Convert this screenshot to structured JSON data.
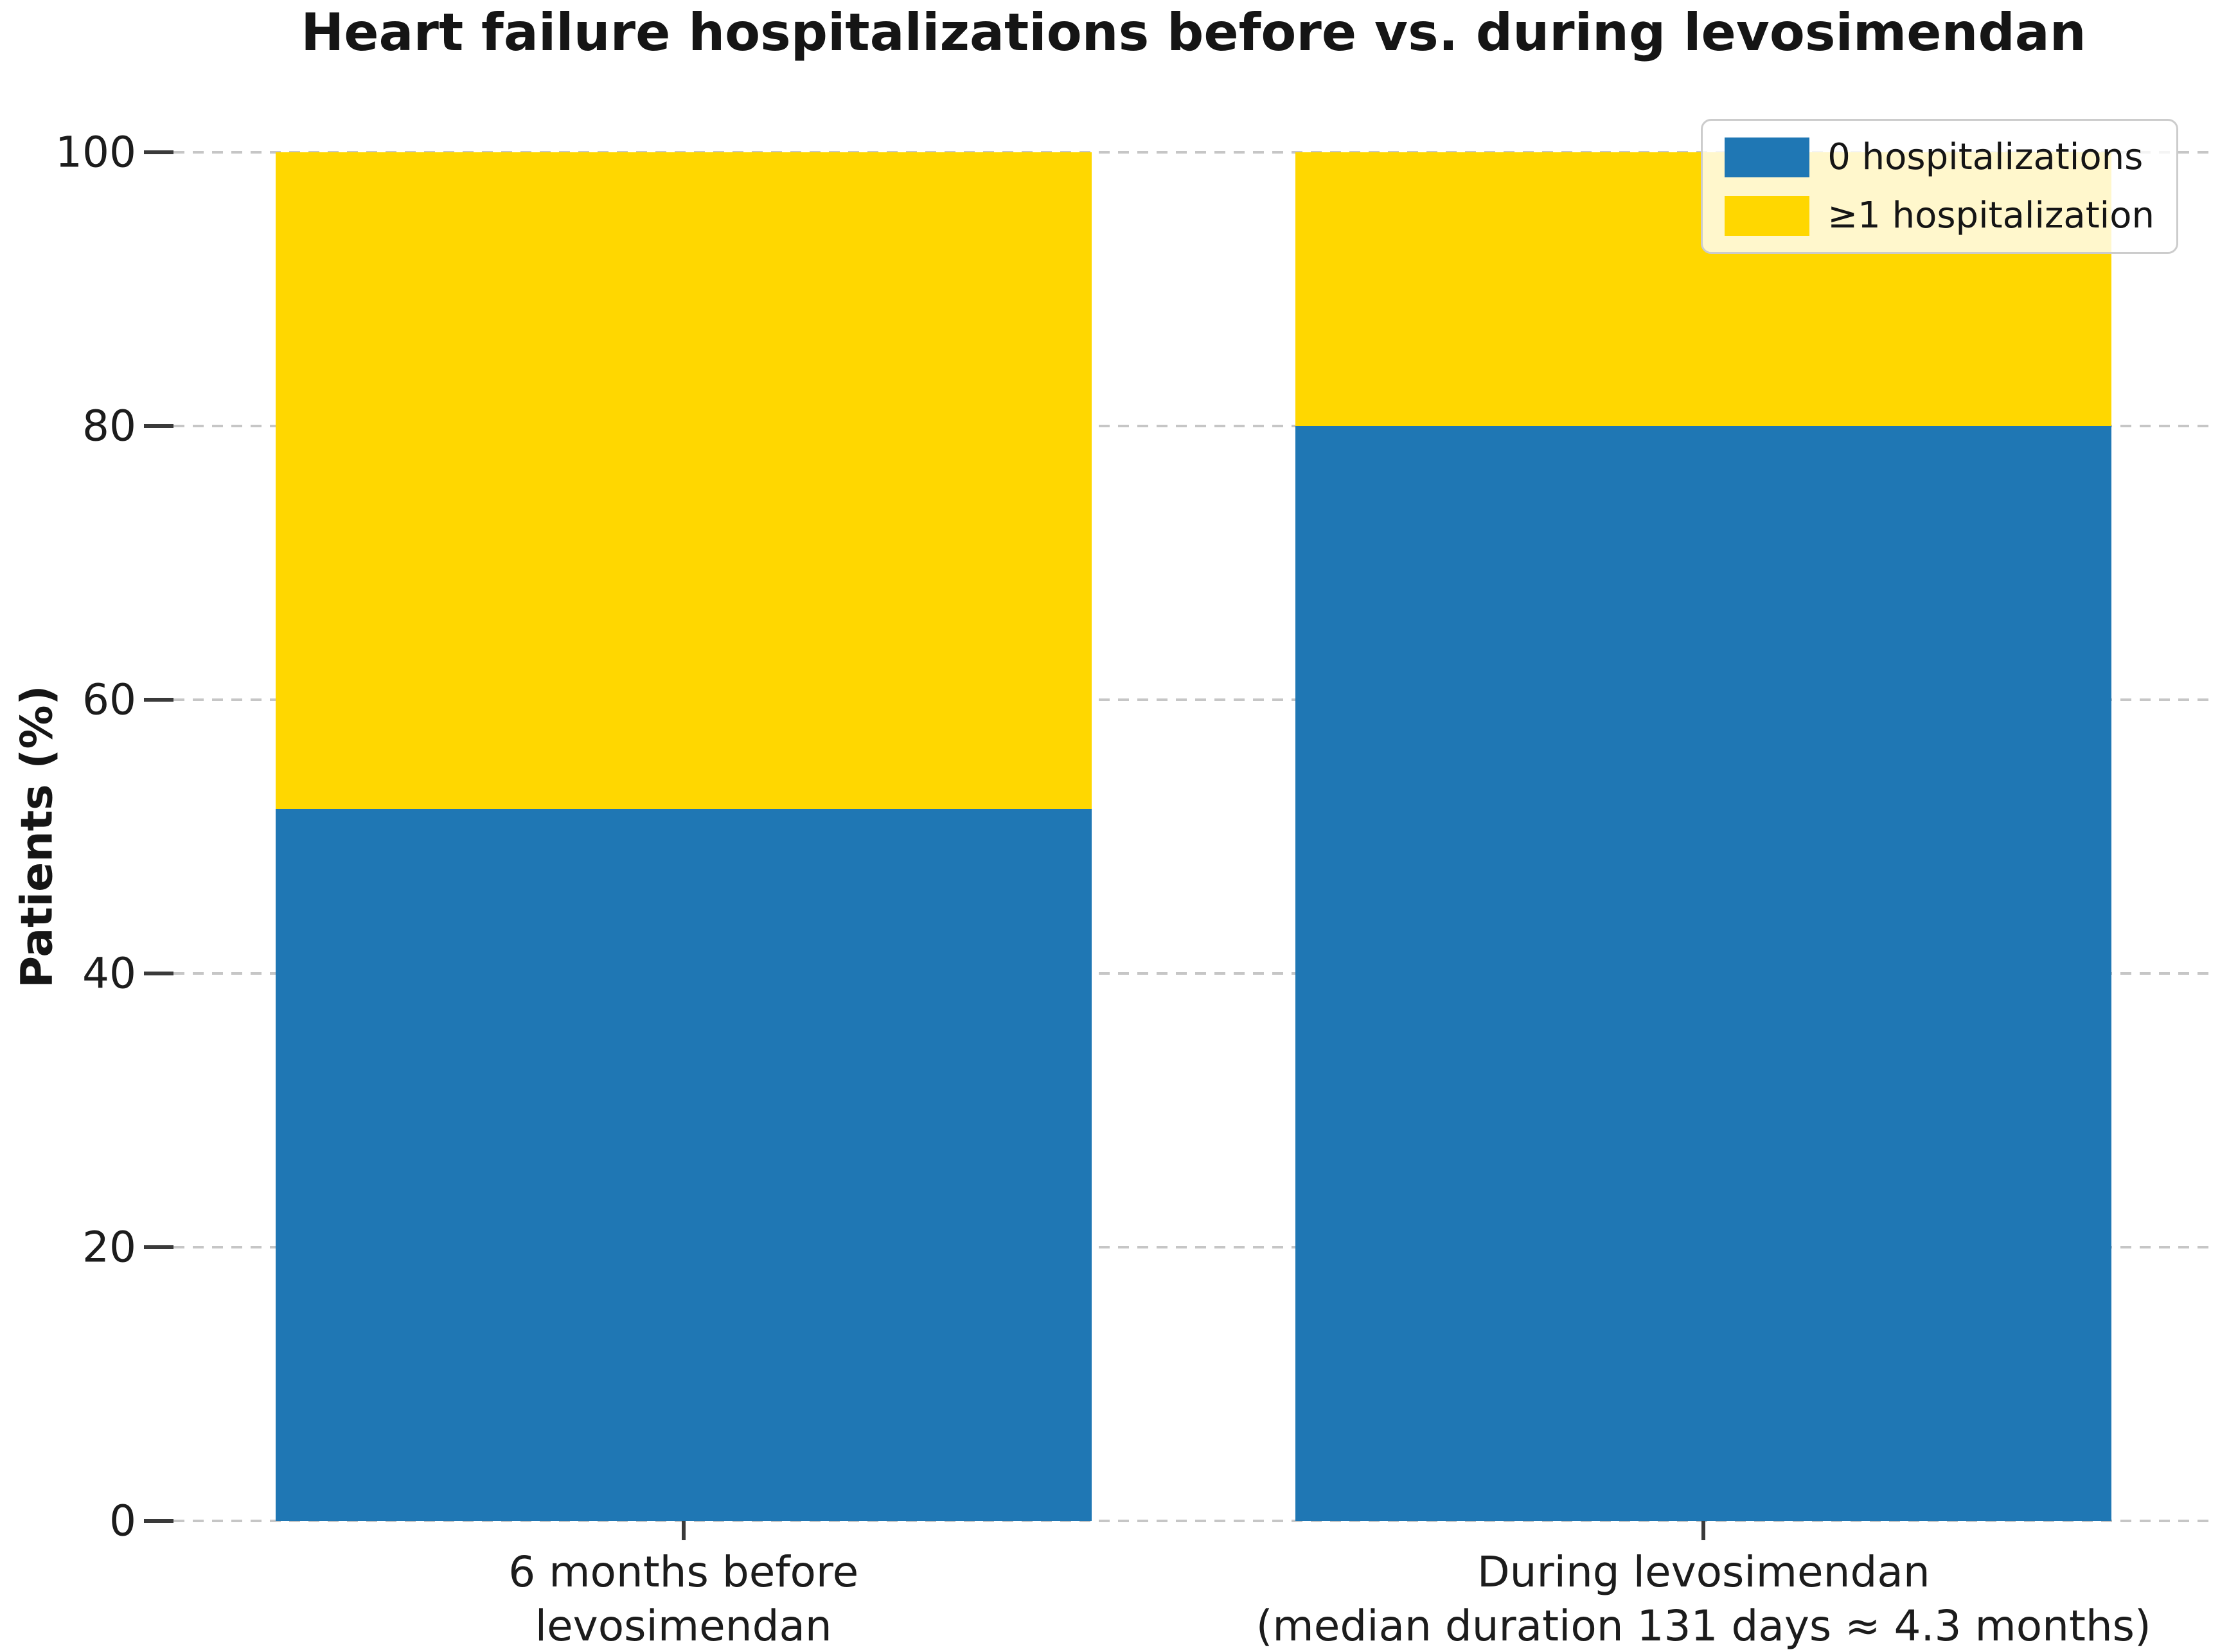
{
  "title": "Heart failure hospitalizations before vs. during levosimendan",
  "y_axis": {
    "label": "Patients (%)",
    "ticks": [
      0,
      20,
      40,
      60,
      80,
      100
    ],
    "range": [
      0,
      100
    ]
  },
  "x_axis": {
    "tick_labels": [
      [
        "6 months before",
        "levosimendan"
      ],
      [
        "During levosimendan",
        "(median duration 131 days ≈ 4.3 months)"
      ]
    ]
  },
  "legend": {
    "position": "upper right",
    "entries": [
      {
        "label": "0 hospitalizations",
        "color": "#1f77b4"
      },
      {
        "label": "≥1 hospitalization",
        "color": "#ffd700"
      }
    ]
  },
  "colors": {
    "blue": "#1f77b4",
    "yellow": "#ffd700",
    "gridline": "#c6c6c6",
    "tick_mark": "#3a3a3a",
    "text": "#151515"
  },
  "chart_data": {
    "type": "bar",
    "stacked": true,
    "orientation": "vertical",
    "title": "Heart failure hospitalizations before vs. during levosimendan",
    "xlabel": "",
    "ylabel": "Patients (%)",
    "ylim": [
      0,
      100
    ],
    "yticks": [
      0,
      20,
      40,
      60,
      80,
      100
    ],
    "grid": "horizontal dashed",
    "legend_position": "upper right",
    "categories": [
      "6 months before levosimendan",
      "During levosimendan (median duration 131 days ≈ 4.3 months)"
    ],
    "series": [
      {
        "name": "0 hospitalizations",
        "color": "#1f77b4",
        "values": [
          52,
          80
        ]
      },
      {
        "name": "≥1 hospitalization",
        "color": "#ffd700",
        "values": [
          48,
          20
        ]
      }
    ]
  }
}
